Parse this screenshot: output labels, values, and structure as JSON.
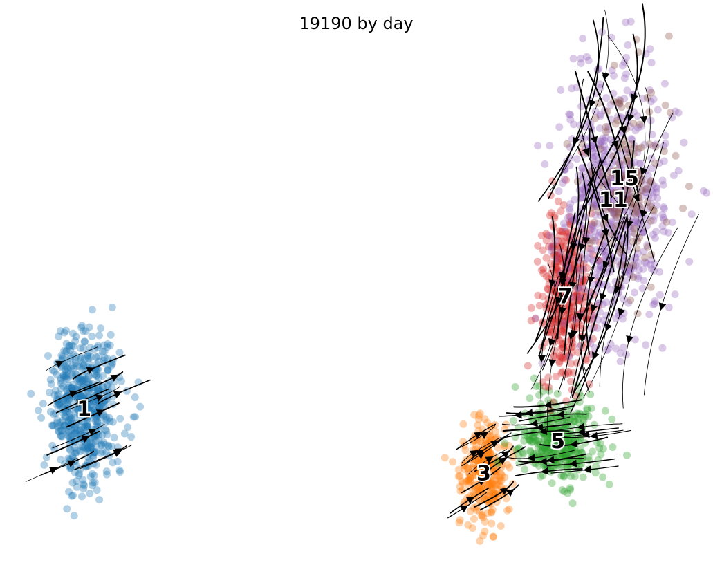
{
  "chart_data": {
    "type": "scatter",
    "title": "19190 by day",
    "xlabel": "",
    "ylabel": "",
    "axes_visible": false,
    "grid": false,
    "legend": "none (cluster labels drawn on plot)",
    "overlay": "velocity streamlines with arrowheads (black)",
    "series": [
      {
        "name": "1",
        "color": "#1f77b4",
        "center": [
          -2.3,
          0.05
        ],
        "spread": [
          0.24,
          0.34
        ],
        "n": 560
      },
      {
        "name": "3",
        "color": "#ff7f0e",
        "center": [
          3.1,
          -0.55
        ],
        "spread": [
          0.16,
          0.24
        ],
        "n": 300
      },
      {
        "name": "5",
        "color": "#2ca02c",
        "center": [
          4.1,
          -0.25
        ],
        "spread": [
          0.28,
          0.2
        ],
        "n": 380
      },
      {
        "name": "7",
        "color": "#d62728",
        "center": [
          4.2,
          1.1
        ],
        "spread": [
          0.18,
          0.4
        ],
        "n": 400
      },
      {
        "name": "11",
        "color": "#9467bd",
        "center": [
          4.85,
          2.0
        ],
        "spread": [
          0.38,
          0.65
        ],
        "n": 620
      },
      {
        "name": "15",
        "color": "#8c564b",
        "center": [
          5.0,
          2.2
        ],
        "spread": [
          0.3,
          0.45
        ],
        "n": 160
      }
    ],
    "labels": [
      {
        "text": "1",
        "x": -2.3,
        "y": 0.05
      },
      {
        "text": "3",
        "x": 3.1,
        "y": -0.55
      },
      {
        "text": "5",
        "x": 4.1,
        "y": -0.25
      },
      {
        "text": "7",
        "x": 4.2,
        "y": 1.1
      },
      {
        "text": "11",
        "x": 4.85,
        "y": 2.0
      },
      {
        "text": "15",
        "x": 5.0,
        "y": 2.2
      }
    ],
    "xlim": [
      -3.25,
      6.0
    ],
    "ylim": [
      -1.3,
      3.5
    ]
  }
}
